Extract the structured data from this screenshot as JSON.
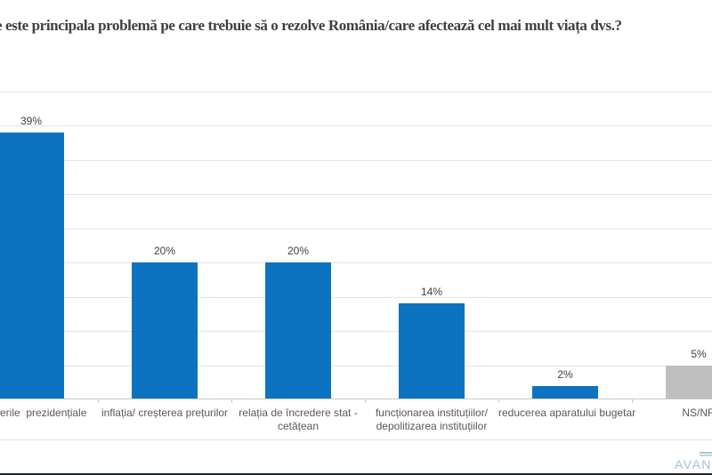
{
  "title": "e este principala problemă pe care trebuie să o rezolve România/care afectează cel mai mult viața dvs.?",
  "chart_data": {
    "type": "bar",
    "title": "e este principala problemă pe care trebuie să o rezolve România/care afectează cel mai mult viața dvs.?",
    "categories": [
      {
        "label_lines": [
          "erile  prezidențiale"
        ],
        "clip": "left"
      },
      {
        "label_lines": [
          "inflația/ creșterea prețurilor"
        ]
      },
      {
        "label_lines": [
          "relația de încredere stat -",
          "cetățean"
        ]
      },
      {
        "label_lines": [
          "funcționarea instituțiilor/",
          "depolitizarea instituțiilor"
        ]
      },
      {
        "label_lines": [
          "reducerea aparatului bugetar"
        ]
      },
      {
        "label_lines": [
          "NS/NR"
        ],
        "clip": "right"
      }
    ],
    "values": [
      39,
      20,
      20,
      14,
      2,
      5
    ],
    "value_labels": [
      "39%",
      "20%",
      "20%",
      "14%",
      "2%",
      "5%"
    ],
    "bar_colors": [
      "#0d73c1",
      "#0d73c1",
      "#0d73c1",
      "#0d73c1",
      "#0d73c1",
      "#bfbfbf"
    ],
    "xlabel": "",
    "ylabel": "",
    "ylim": [
      0,
      45
    ],
    "grid_step": 5,
    "grid": true,
    "legend": "none",
    "data_label_format": "percent"
  },
  "colors": {
    "bar_blue": "#0d73c1",
    "bar_gray": "#bfbfbf",
    "title_text": "#3f3f3f",
    "category_text": "#595959",
    "value_text": "#404040",
    "gridline": "#e5e5e5",
    "axis": "#c8c8c8",
    "logo_blue": "#9cc3d6"
  },
  "logo": {
    "text": "AVAN"
  }
}
